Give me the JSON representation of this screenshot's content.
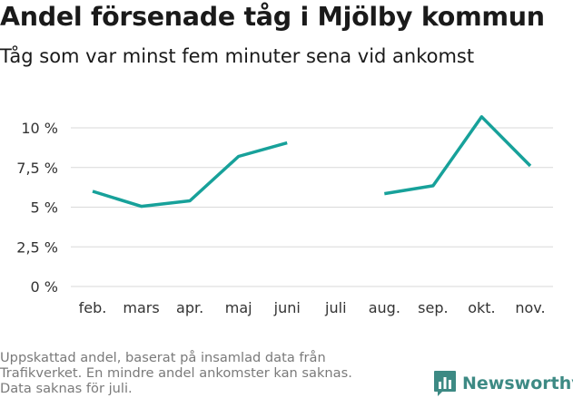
{
  "title": "Andel försenade tåg i Mjölby kommun",
  "subtitle": "Tåg som var minst fem minuter sena vid ankomst",
  "footnote": [
    "Uppskattad andel, baserat på insamlad data från",
    "Trafikverket. En mindre andel ankomster kan saknas.",
    "Data saknas för juli."
  ],
  "brand": {
    "name": "Newsworthy",
    "icon": "bar-chart-speech-icon",
    "color": "#3d8a84"
  },
  "chart_data": {
    "type": "line",
    "title": "Andel försenade tåg i Mjölby kommun",
    "subtitle": "Tåg som var minst fem minuter sena vid ankomst",
    "categories": [
      "feb.",
      "mars",
      "apr.",
      "maj",
      "juni",
      "juli",
      "aug.",
      "sep.",
      "okt.",
      "nov."
    ],
    "series": [
      {
        "values": [
          6.0,
          5.05,
          5.4,
          8.2,
          9.05,
          null,
          5.85,
          6.35,
          10.7,
          7.6
        ],
        "color": "#17a19a"
      }
    ],
    "y_ticks": [
      0,
      2.5,
      5,
      7.5,
      10
    ],
    "y_tick_labels": [
      "0 %",
      "2,5 %",
      "5 %",
      "7,5 %",
      "10 %"
    ],
    "ylim": [
      0,
      11.2
    ],
    "grid": true,
    "legend": false,
    "xlabel": "",
    "ylabel": ""
  }
}
